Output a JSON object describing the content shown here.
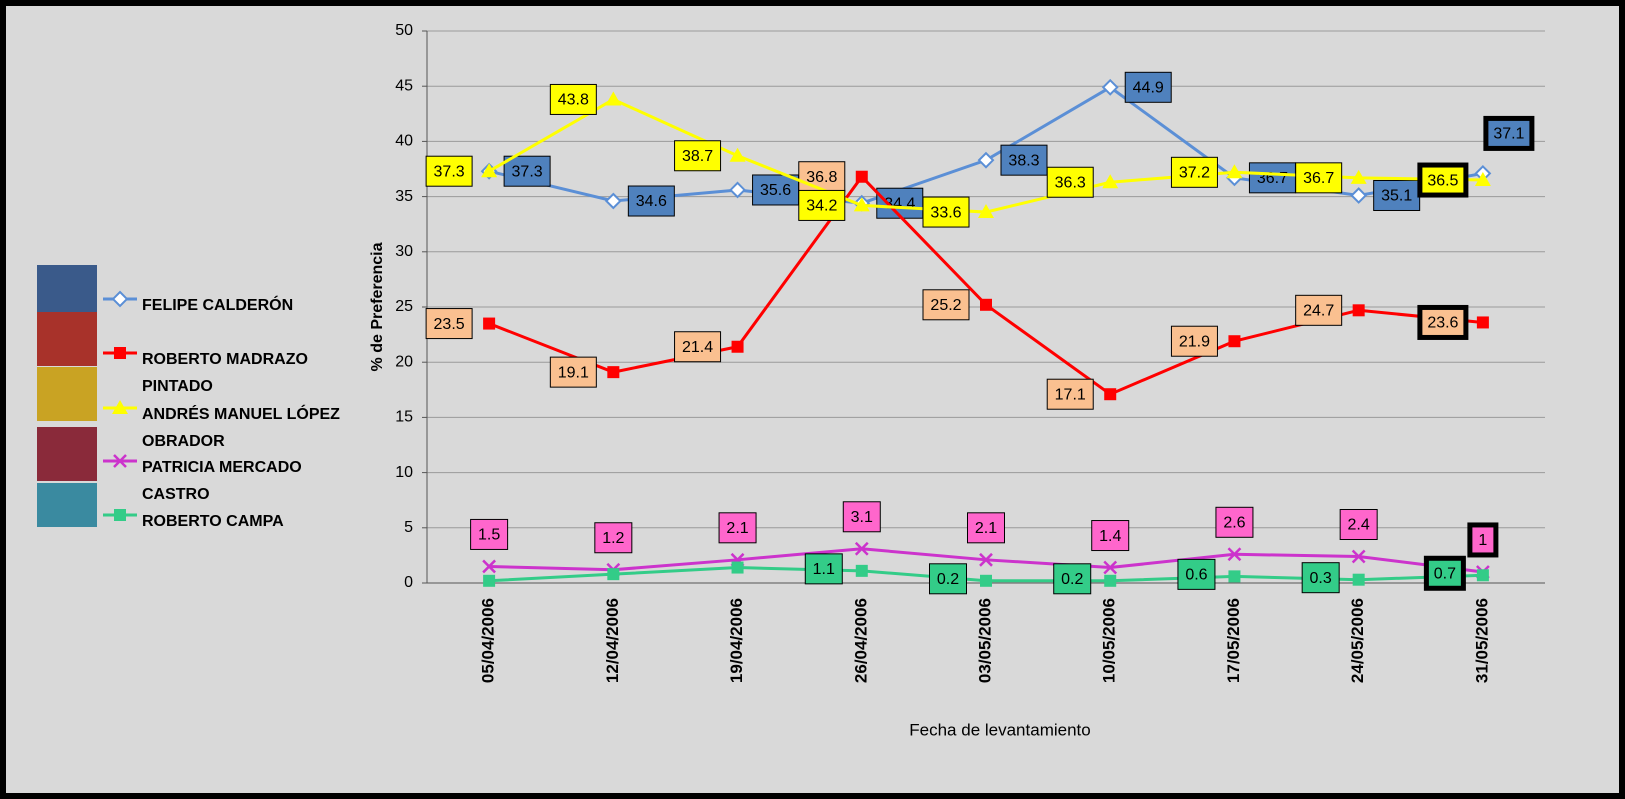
{
  "chart_data": {
    "type": "line",
    "x_label": "Fecha de levantamiento",
    "y_label": "% de Preferencia",
    "categories": [
      "05/04/2006",
      "12/04/2006",
      "19/04/2006",
      "26/04/2006",
      "03/05/2006",
      "10/05/2006",
      "17/05/2006",
      "24/05/2006",
      "31/05/2006"
    ],
    "ylim": [
      0,
      50
    ],
    "yticks": [
      0,
      5,
      10,
      15,
      20,
      25,
      30,
      35,
      40,
      45,
      50
    ],
    "grid": true,
    "legend": "left",
    "highlight_last": true,
    "series": [
      {
        "name": "FELIPE CALDERÓN",
        "color": "#5b8fd6",
        "label_color": "#4f81bd",
        "marker": "diamond",
        "values": [
          37.3,
          34.6,
          35.6,
          34.4,
          38.3,
          44.9,
          36.7,
          35.1,
          37.1
        ]
      },
      {
        "name": "ROBERTO MADRAZO PINTADO",
        "color": "#ff0000",
        "label_color": "#fac090",
        "marker": "square",
        "values": [
          23.5,
          19.1,
          21.4,
          36.8,
          25.2,
          17.1,
          21.9,
          24.7,
          23.6
        ]
      },
      {
        "name": "ANDRÉS MANUEL LÓPEZ OBRADOR",
        "color": "#ffff00",
        "label_color": "#ffff00",
        "marker": "triangle",
        "values": [
          37.3,
          43.8,
          38.7,
          34.2,
          33.6,
          36.3,
          37.2,
          36.7,
          36.5
        ]
      },
      {
        "name": "PATRICIA MERCADO CASTRO",
        "color": "#cc33cc",
        "label_color": "#ff66cc",
        "marker": "x",
        "values": [
          1.5,
          1.2,
          2.1,
          3.1,
          2.1,
          1.4,
          2.6,
          2.4,
          1
        ]
      },
      {
        "name": "ROBERTO CAMPA",
        "color": "#33cc88",
        "label_color": "#33cc88",
        "marker": "square",
        "values": [
          0.2,
          0.8,
          1.4,
          1.1,
          0.2,
          0.2,
          0.6,
          0.3,
          0.7
        ],
        "value_labels": [
          null,
          null,
          null,
          "1.1",
          "0.2",
          "0.2",
          "0.6",
          "0.3",
          "0.7"
        ]
      }
    ]
  }
}
